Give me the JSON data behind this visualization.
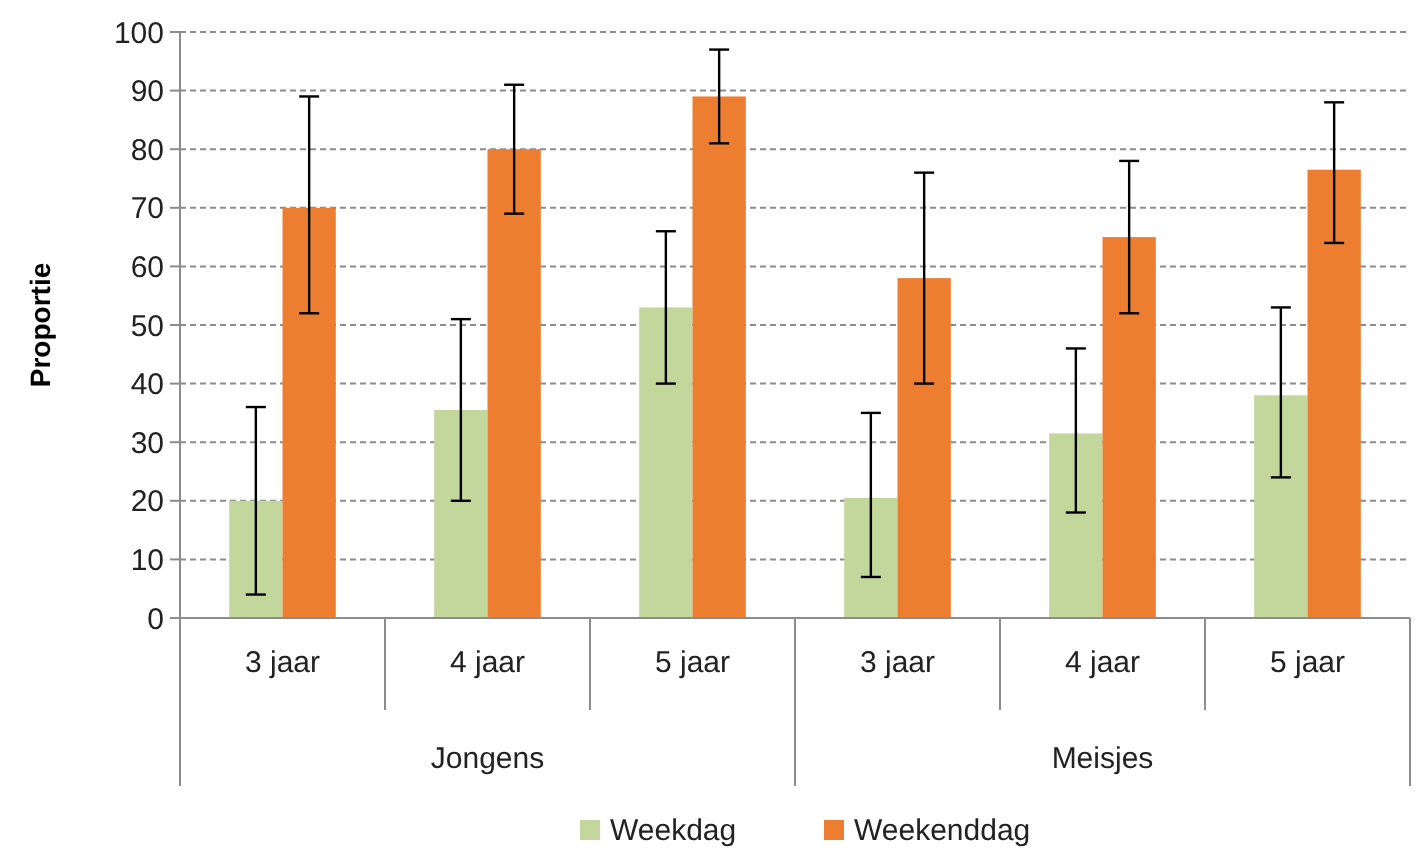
{
  "chart_data": {
    "type": "bar",
    "ylabel": "Proportie",
    "categories": [
      "3 jaar",
      "4 jaar",
      "5 jaar",
      "3 jaar",
      "4 jaar",
      "5 jaar"
    ],
    "annotations": [
      "Jongens",
      "Meisjes"
    ],
    "series": [
      {
        "name": "Weekdag",
        "color": "#c3d69b",
        "values": [
          20,
          35.5,
          53,
          20.5,
          31.5,
          38
        ],
        "errors": [
          [
            4,
            36
          ],
          [
            20,
            51
          ],
          [
            40,
            66
          ],
          [
            7,
            35
          ],
          [
            18,
            46
          ],
          [
            24,
            53
          ]
        ]
      },
      {
        "name": "Weekenddag",
        "color": "#ed7d31",
        "values": [
          70,
          80,
          89,
          58,
          65,
          76.5
        ],
        "errors": [
          [
            52,
            89
          ],
          [
            69,
            91
          ],
          [
            81,
            97
          ],
          [
            40,
            76
          ],
          [
            52,
            78
          ],
          [
            64,
            88
          ]
        ]
      }
    ],
    "ylim": [
      0,
      100
    ],
    "yticks": [
      0,
      10,
      20,
      30,
      40,
      50,
      60,
      70,
      80,
      90,
      100
    ],
    "grid": "y",
    "legend": "bottom"
  }
}
